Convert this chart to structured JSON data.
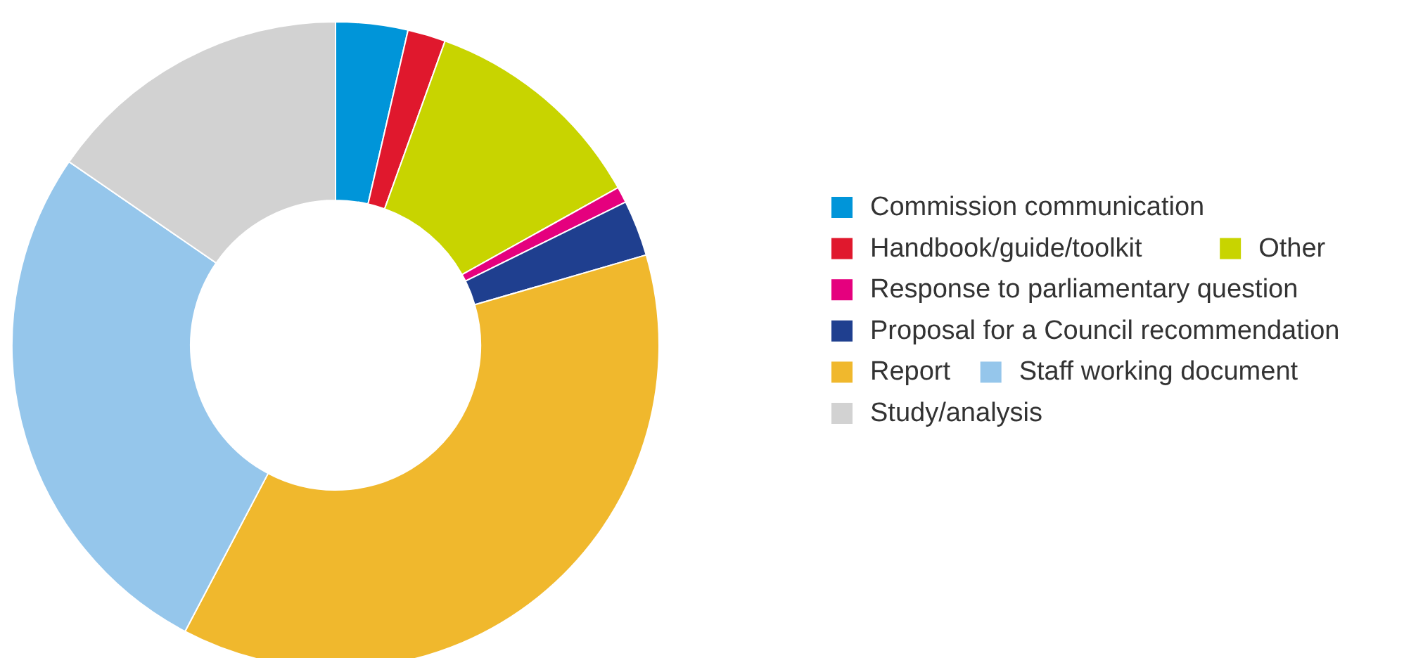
{
  "chart_data": {
    "type": "donut",
    "categories": [
      "Commission communication",
      "Handbook/guide/toolkit",
      "Other",
      "Response to parliamentary question",
      "Proposal for a Council recommendation",
      "Report",
      "Staff working document",
      "Study/analysis"
    ],
    "values": [
      3.6,
      1.9,
      11.4,
      0.8,
      2.8,
      37.2,
      26.9,
      15.4
    ],
    "colors": [
      "#0095d9",
      "#e0182d",
      "#c8d400",
      "#e5007e",
      "#1f3f8f",
      "#f0b82d",
      "#95c6eb",
      "#d2d2d2"
    ],
    "legend": "right"
  }
}
